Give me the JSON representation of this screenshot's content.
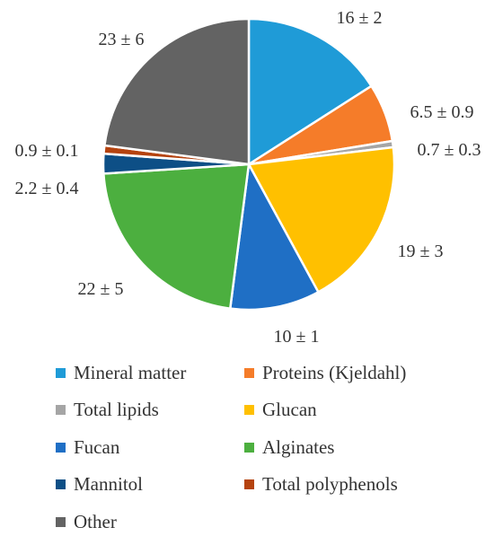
{
  "chart_data": {
    "type": "pie",
    "title": "",
    "start_angle_deg": 0,
    "direction": "clockwise",
    "legend_position": "bottom",
    "slices": [
      {
        "name": "Mineral matter",
        "value": 16,
        "label": "16 ± 2",
        "color": "#1f9bd7"
      },
      {
        "name": "Proteins (Kjeldahl)",
        "value": 6.5,
        "label": "6.5 ± 0.9",
        "color": "#f57c29"
      },
      {
        "name": "Total lipids",
        "value": 0.7,
        "label": "0.7 ± 0.3",
        "color": "#a5a5a5"
      },
      {
        "name": "Glucan",
        "value": 19,
        "label": "19 ± 3",
        "color": "#ffc000"
      },
      {
        "name": "Fucan",
        "value": 10,
        "label": "10 ± 1",
        "color": "#1f6fc5"
      },
      {
        "name": "Alginates",
        "value": 22,
        "label": "22 ± 5",
        "color": "#4caf3f"
      },
      {
        "name": "Mannitol",
        "value": 2.2,
        "label": "2.2 ± 0.4",
        "color": "#0d4f86"
      },
      {
        "name": "Total polyphenols",
        "value": 0.9,
        "label": "0.9 ± 0.1",
        "color": "#b5430f"
      },
      {
        "name": "Other",
        "value": 23,
        "label": "23 ± 6",
        "color": "#636363"
      }
    ]
  }
}
